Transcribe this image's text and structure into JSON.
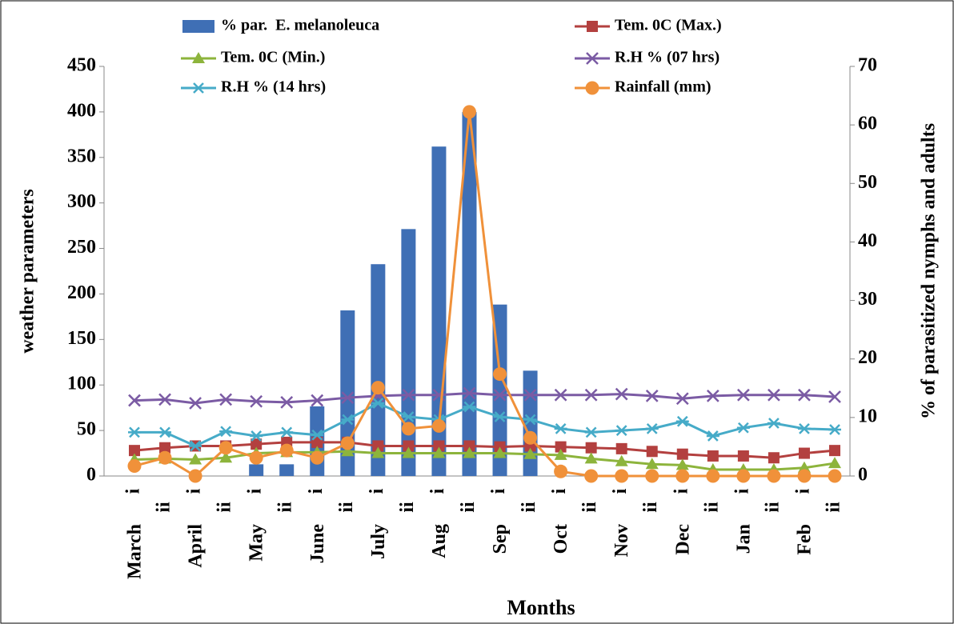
{
  "chart_data": {
    "type": "bar-line",
    "x_label": "Months",
    "y_label": "weather parameters",
    "y2_label": "% of parasitized nymphs and adults",
    "categories": [
      "i",
      "ii",
      "i",
      "ii",
      "i",
      "ii",
      "i",
      "ii",
      "i",
      "ii",
      "i",
      "ii",
      "i",
      "ii",
      "i",
      "ii",
      "i",
      "ii",
      "i",
      "ii",
      "i",
      "ii",
      "i",
      "ii"
    ],
    "month_labels": [
      "March",
      "April",
      "May",
      "June",
      "July",
      "Aug",
      "Sep",
      "Oct",
      "Nov",
      "Dec",
      "Jan",
      "Feb"
    ],
    "ylim": [
      0,
      450
    ],
    "yticks": [
      0,
      50,
      100,
      150,
      200,
      250,
      300,
      350,
      400,
      450
    ],
    "y2lim": [
      0,
      70
    ],
    "y2ticks": [
      0,
      10,
      20,
      30,
      40,
      50,
      60,
      70
    ],
    "series": [
      {
        "name": "% par.  E. melanoleuca",
        "kind": "bar",
        "axis": "y2",
        "color": "#3f6fb5",
        "values": [
          0,
          0,
          0,
          0,
          2,
          2,
          11.9,
          28.3,
          36.2,
          42.2,
          56.3,
          62.2,
          29.3,
          18.0,
          0,
          0,
          0,
          0,
          0,
          0,
          0,
          0,
          0,
          0
        ]
      },
      {
        "name": "Tem. 0C (Max.)",
        "kind": "line",
        "marker": "square",
        "color": "#b3403f",
        "values": [
          28,
          31,
          33,
          33,
          35,
          37,
          37,
          37,
          33,
          33,
          33,
          33,
          32,
          33,
          32,
          31,
          30,
          27,
          24,
          22,
          22,
          20,
          25,
          28
        ]
      },
      {
        "name": "Tem. 0C (Min.)",
        "kind": "line",
        "marker": "triangle",
        "color": "#8db43c",
        "values": [
          18,
          19,
          18,
          20,
          25,
          26,
          26,
          27,
          25,
          25,
          25,
          25,
          25,
          24,
          23,
          19,
          16,
          13,
          12,
          7,
          7,
          7,
          9,
          14
        ]
      },
      {
        "name": "R.H % (07 hrs)",
        "kind": "line",
        "marker": "x",
        "color": "#7b5ba4",
        "values": [
          83,
          84,
          80,
          84,
          82,
          81,
          83,
          86,
          88,
          89,
          89,
          91,
          89,
          89,
          89,
          89,
          90,
          88,
          85,
          88,
          89,
          89,
          89,
          87
        ]
      },
      {
        "name": "R.H % (14 hrs)",
        "kind": "line",
        "marker": "star",
        "color": "#46abc8",
        "values": [
          48,
          48,
          33,
          49,
          44,
          48,
          45,
          62,
          80,
          65,
          62,
          76,
          65,
          62,
          52,
          48,
          50,
          52,
          60,
          44,
          53,
          58,
          52,
          51
        ]
      },
      {
        "name": "Rainfall (mm)",
        "kind": "line",
        "marker": "circle",
        "color": "#f0913a",
        "values": [
          11,
          20,
          0,
          31,
          20,
          28,
          20,
          36,
          97,
          52,
          55,
          400,
          112,
          42,
          5,
          0,
          0,
          0,
          0,
          0,
          0,
          0,
          0,
          0
        ]
      }
    ]
  }
}
